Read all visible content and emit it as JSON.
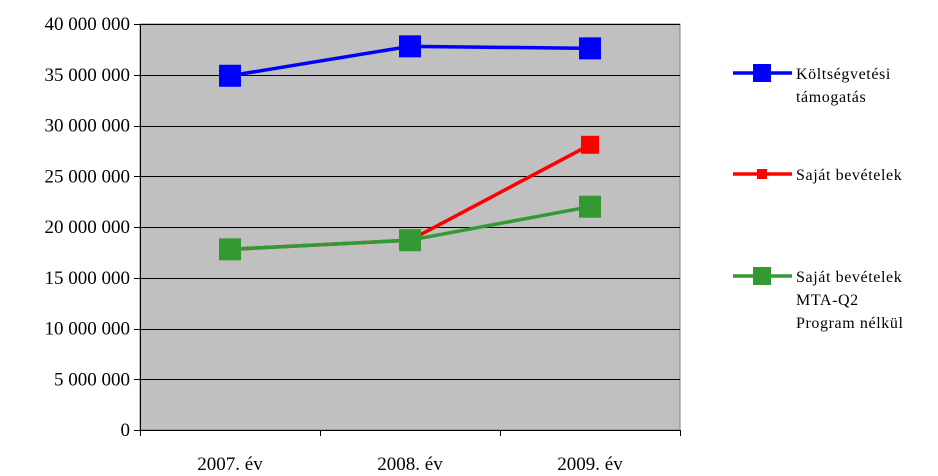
{
  "chart_data": {
    "type": "line",
    "title": "",
    "xlabel": "",
    "ylabel": "",
    "categories": [
      "2007. év",
      "2008. év",
      "2009. év"
    ],
    "ylim": [
      0,
      40000000
    ],
    "y_ticks": [
      0,
      5000000,
      10000000,
      15000000,
      20000000,
      25000000,
      30000000,
      35000000,
      40000000
    ],
    "y_tick_labels": [
      "0",
      "5 000 000",
      "10 000 000",
      "15 000 000",
      "20 000 000",
      "25 000 000",
      "30 000 000",
      "35 000 000",
      "40 000 000"
    ],
    "grid": true,
    "plot_background": "#c0c0c0",
    "legend_position": "right",
    "series": [
      {
        "name_lines": [
          "Költségvetési",
          "támogatás"
        ],
        "values": [
          34900000,
          37800000,
          37600000
        ],
        "color": "#0000ff",
        "marker": "square"
      },
      {
        "name_lines": [
          "Saját bevételek"
        ],
        "values": [
          17800000,
          18700000,
          28100000
        ],
        "color": "#ff0000",
        "marker": "square"
      },
      {
        "name_lines": [
          "Saját bevételek",
          "MTA-Q2",
          "Program nélkül"
        ],
        "values": [
          17800000,
          18700000,
          22000000
        ],
        "color": "#339933",
        "marker": "square"
      }
    ]
  }
}
